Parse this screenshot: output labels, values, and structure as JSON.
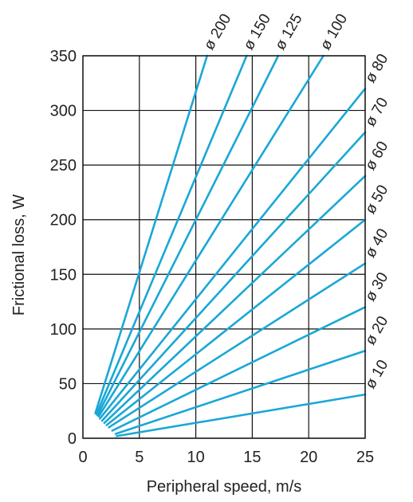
{
  "chart_data": {
    "type": "line",
    "xlabel": "Peripheral speed, m/s",
    "ylabel": "Frictional loss, W",
    "xlim": [
      0,
      25
    ],
    "ylim": [
      0,
      350
    ],
    "x_ticks": [
      "0",
      "5",
      "10",
      "15",
      "20",
      "25"
    ],
    "y_ticks": [
      "0",
      "50",
      "100",
      "150",
      "200",
      "250",
      "300",
      "350"
    ],
    "grid": true,
    "line_color": "#1aa7d6",
    "series": [
      {
        "name": "ø 10",
        "points": [
          [
            3.0,
            2
          ],
          [
            25,
            40
          ]
        ]
      },
      {
        "name": "ø 20",
        "points": [
          [
            2.9,
            4
          ],
          [
            25,
            80
          ]
        ]
      },
      {
        "name": "ø 30",
        "points": [
          [
            2.6,
            7
          ],
          [
            25,
            120
          ]
        ]
      },
      {
        "name": "ø 40",
        "points": [
          [
            2.3,
            10
          ],
          [
            25,
            160
          ]
        ]
      },
      {
        "name": "ø 50",
        "points": [
          [
            2.1,
            12
          ],
          [
            25,
            200
          ]
        ]
      },
      {
        "name": "ø 60",
        "points": [
          [
            1.9,
            14
          ],
          [
            25,
            240
          ]
        ]
      },
      {
        "name": "ø 70",
        "points": [
          [
            1.7,
            16
          ],
          [
            25,
            280
          ]
        ]
      },
      {
        "name": "ø 80",
        "points": [
          [
            1.5,
            18
          ],
          [
            25,
            320
          ]
        ]
      },
      {
        "name": "ø 100",
        "points": [
          [
            1.4,
            20
          ],
          [
            21.3,
            350
          ]
        ]
      },
      {
        "name": "ø 125",
        "points": [
          [
            1.3,
            21
          ],
          [
            17.3,
            350
          ]
        ]
      },
      {
        "name": "ø 150",
        "points": [
          [
            1.2,
            22
          ],
          [
            14.5,
            350
          ]
        ]
      },
      {
        "name": "ø 200",
        "points": [
          [
            1.1,
            23
          ],
          [
            11.0,
            350
          ]
        ]
      }
    ]
  }
}
